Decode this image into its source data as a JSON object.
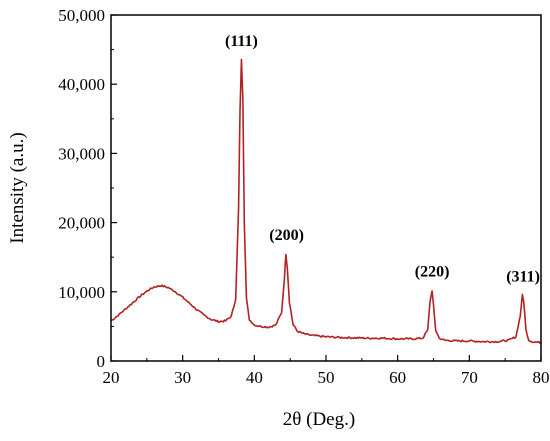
{
  "chart_data": {
    "type": "line",
    "title": "",
    "xlabel": "2θ (Deg.)",
    "ylabel": "Intensity (a.u.)",
    "xlim": [
      20,
      80
    ],
    "ylim": [
      0,
      50000
    ],
    "x_ticks": [
      20,
      30,
      40,
      50,
      60,
      70,
      80
    ],
    "x_tick_labels": [
      "20",
      "30",
      "40",
      "50",
      "60",
      "70",
      "80"
    ],
    "y_ticks": [
      0,
      10000,
      20000,
      30000,
      40000,
      50000
    ],
    "y_tick_labels": [
      "0",
      "10,000",
      "20,000",
      "30,000",
      "40,000",
      "50,000"
    ],
    "grid": false,
    "legend": "none",
    "line_color": "#b22222",
    "series": [
      {
        "x": [
          20,
          21,
          22,
          23,
          24,
          25,
          26,
          27,
          28,
          29,
          30,
          31,
          32,
          33,
          34,
          35,
          36,
          36.8,
          37.4,
          37.8,
          38.0,
          38.2,
          38.4,
          38.6,
          38.9,
          39.3,
          40,
          41,
          42,
          43,
          43.8,
          44.2,
          44.4,
          44.6,
          44.9,
          45.4,
          46,
          47,
          48,
          50,
          52,
          54,
          56,
          58,
          60,
          62,
          63.5,
          64.2,
          64.5,
          64.8,
          65.0,
          65.3,
          65.8,
          66.5,
          68,
          70,
          72,
          74,
          75.5,
          76.5,
          77.1,
          77.4,
          77.6,
          77.9,
          78.3,
          78.8,
          79.5,
          80
        ],
        "y": [
          5800,
          6600,
          7500,
          8400,
          9300,
          10100,
          10700,
          10900,
          10600,
          10000,
          9200,
          8300,
          7400,
          6600,
          6000,
          5700,
          5800,
          6500,
          9000,
          22000,
          36000,
          43500,
          38000,
          20000,
          9000,
          6000,
          5200,
          5000,
          4900,
          5200,
          7000,
          12000,
          15500,
          13500,
          8500,
          5300,
          4300,
          3900,
          3700,
          3500,
          3400,
          3350,
          3300,
          3300,
          3200,
          3200,
          3300,
          4500,
          8500,
          10200,
          8000,
          4500,
          3300,
          3000,
          2900,
          2900,
          2800,
          2800,
          3000,
          3500,
          6500,
          9500,
          8500,
          4500,
          3000,
          2800,
          2700,
          2700
        ]
      }
    ],
    "annotations": [
      {
        "text": "(111)",
        "x": 38.2,
        "y": 45500
      },
      {
        "text": "(200)",
        "x": 44.5,
        "y": 17500
      },
      {
        "text": "(220)",
        "x": 64.8,
        "y": 12200
      },
      {
        "text": "(311)",
        "x": 77.5,
        "y": 11500
      }
    ]
  }
}
